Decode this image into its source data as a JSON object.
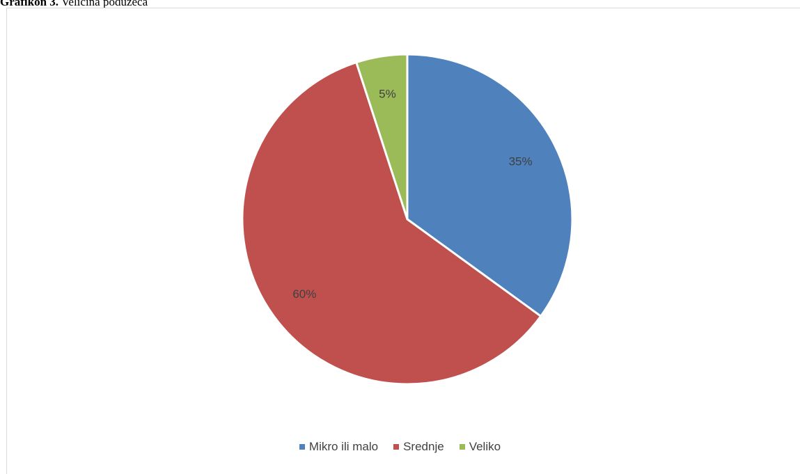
{
  "caption": {
    "label": "Grafikon 3.",
    "text": "Veličina poduzeća"
  },
  "chart_data": {
    "type": "pie",
    "title": "",
    "categories": [
      "Mikro ili malo",
      "Srednje",
      "Veliko"
    ],
    "values": [
      35,
      60,
      5
    ],
    "data_labels": [
      "35%",
      "60%",
      "5%"
    ],
    "colors": [
      "#4f81bd",
      "#c0504d",
      "#9bbb59"
    ],
    "start_angle": "12 o'clock, clockwise",
    "legend_position": "bottom"
  }
}
